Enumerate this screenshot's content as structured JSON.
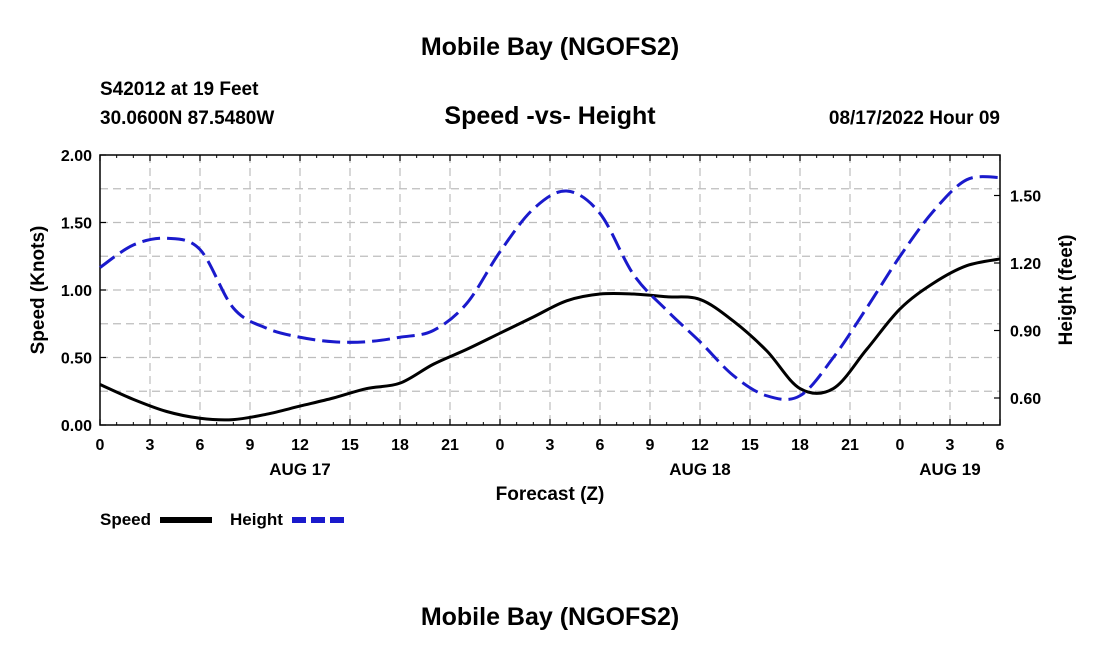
{
  "header": {
    "main_title": "Mobile Bay (NGOFS2)",
    "station_line": "S42012 at 19 Feet",
    "coords_line": "30.0600N  87.5480W",
    "chart_title": "Speed -vs- Height",
    "issued": "08/17/2022 Hour 09"
  },
  "footer": {
    "repeat_title": "Mobile Bay (NGOFS2)"
  },
  "legend": [
    {
      "label": "Speed",
      "color": "#000000",
      "dash": "solid"
    },
    {
      "label": "Height",
      "color": "#1a1acc",
      "dash": "dashed"
    }
  ],
  "chart_data": {
    "type": "line",
    "xlabel": "Forecast (Z)",
    "ylabel_left": "Speed (Knots)",
    "ylabel_right": "Height (feet)",
    "x_ticks": [
      "0",
      "3",
      "6",
      "9",
      "12",
      "15",
      "18",
      "21",
      "0",
      "3",
      "6",
      "9",
      "12",
      "15",
      "18",
      "21",
      "0",
      "3",
      "6"
    ],
    "date_labels": [
      {
        "label": "AUG 17",
        "x_hour": 12
      },
      {
        "label": "AUG 18",
        "x_hour": 36
      },
      {
        "label": "AUG 19",
        "x_hour": 51
      }
    ],
    "xlim": [
      0,
      54
    ],
    "y_left": {
      "lim": [
        0,
        2
      ],
      "ticks": [
        "0.00",
        "0.50",
        "1.00",
        "1.50",
        "2.00"
      ],
      "tick_values": [
        0,
        0.5,
        1.0,
        1.5,
        2.0
      ]
    },
    "y_right": {
      "lim": [
        0.48,
        1.68
      ],
      "ticks": [
        "0.60",
        "0.90",
        "1.20",
        "1.50"
      ],
      "tick_values": [
        0.6,
        0.9,
        1.2,
        1.5
      ]
    },
    "grid": true,
    "series": [
      {
        "name": "Speed",
        "axis": "left",
        "color": "#000000",
        "x": [
          0,
          2,
          4,
          6,
          8,
          10,
          12,
          14,
          16,
          18,
          20,
          22,
          24,
          26,
          28,
          30,
          32,
          34,
          36,
          38,
          40,
          42,
          44,
          46,
          48,
          50,
          52,
          54
        ],
        "y": [
          0.3,
          0.19,
          0.1,
          0.05,
          0.04,
          0.08,
          0.14,
          0.2,
          0.27,
          0.31,
          0.45,
          0.56,
          0.68,
          0.8,
          0.92,
          0.97,
          0.97,
          0.95,
          0.93,
          0.77,
          0.55,
          0.27,
          0.27,
          0.56,
          0.86,
          1.05,
          1.18,
          1.23
        ]
      },
      {
        "name": "Height",
        "axis": "right",
        "color": "#1a1acc",
        "x": [
          0,
          2,
          4,
          6,
          8,
          10,
          12,
          14,
          16,
          18,
          20,
          22,
          24,
          26,
          28,
          30,
          32,
          34,
          36,
          38,
          40,
          42,
          44,
          46,
          48,
          50,
          52,
          54
        ],
        "y": [
          1.18,
          1.28,
          1.31,
          1.26,
          1.0,
          0.91,
          0.87,
          0.85,
          0.85,
          0.87,
          0.9,
          1.02,
          1.25,
          1.44,
          1.52,
          1.42,
          1.15,
          0.99,
          0.85,
          0.7,
          0.61,
          0.61,
          0.78,
          1.0,
          1.23,
          1.43,
          1.57,
          1.58
        ]
      }
    ]
  }
}
